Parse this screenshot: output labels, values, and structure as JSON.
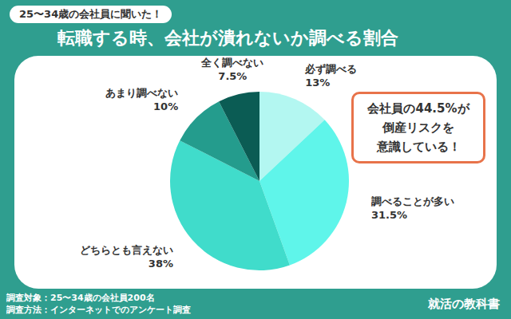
{
  "chart_data": {
    "type": "pie",
    "subtitle": "25〜34歳の会社員に聞いた！",
    "title": "転職する時、会社が潰れないか調べる割合",
    "categories": [
      "必ず調べる",
      "調べることが多い",
      "どちらとも言えない",
      "あまり調べない",
      "全く調べない"
    ],
    "values": [
      13,
      31.5,
      38,
      10,
      7.5
    ],
    "value_labels": [
      "13%",
      "31.5%",
      "38%",
      "10%",
      "7.5%"
    ],
    "data_labels": true,
    "colors": [
      "#b3f7f1",
      "#5ff5ea",
      "#40dccb",
      "#249c8d",
      "#0b5c54"
    ],
    "annotation": [
      "会社員の44.5%が",
      "倒産リスクを",
      "意識している！"
    ],
    "footer": [
      "調査対象：25〜34歳の会社員200名",
      "調査方法：インターネットでのアンケート調査"
    ],
    "brand": "就活の教科書"
  }
}
